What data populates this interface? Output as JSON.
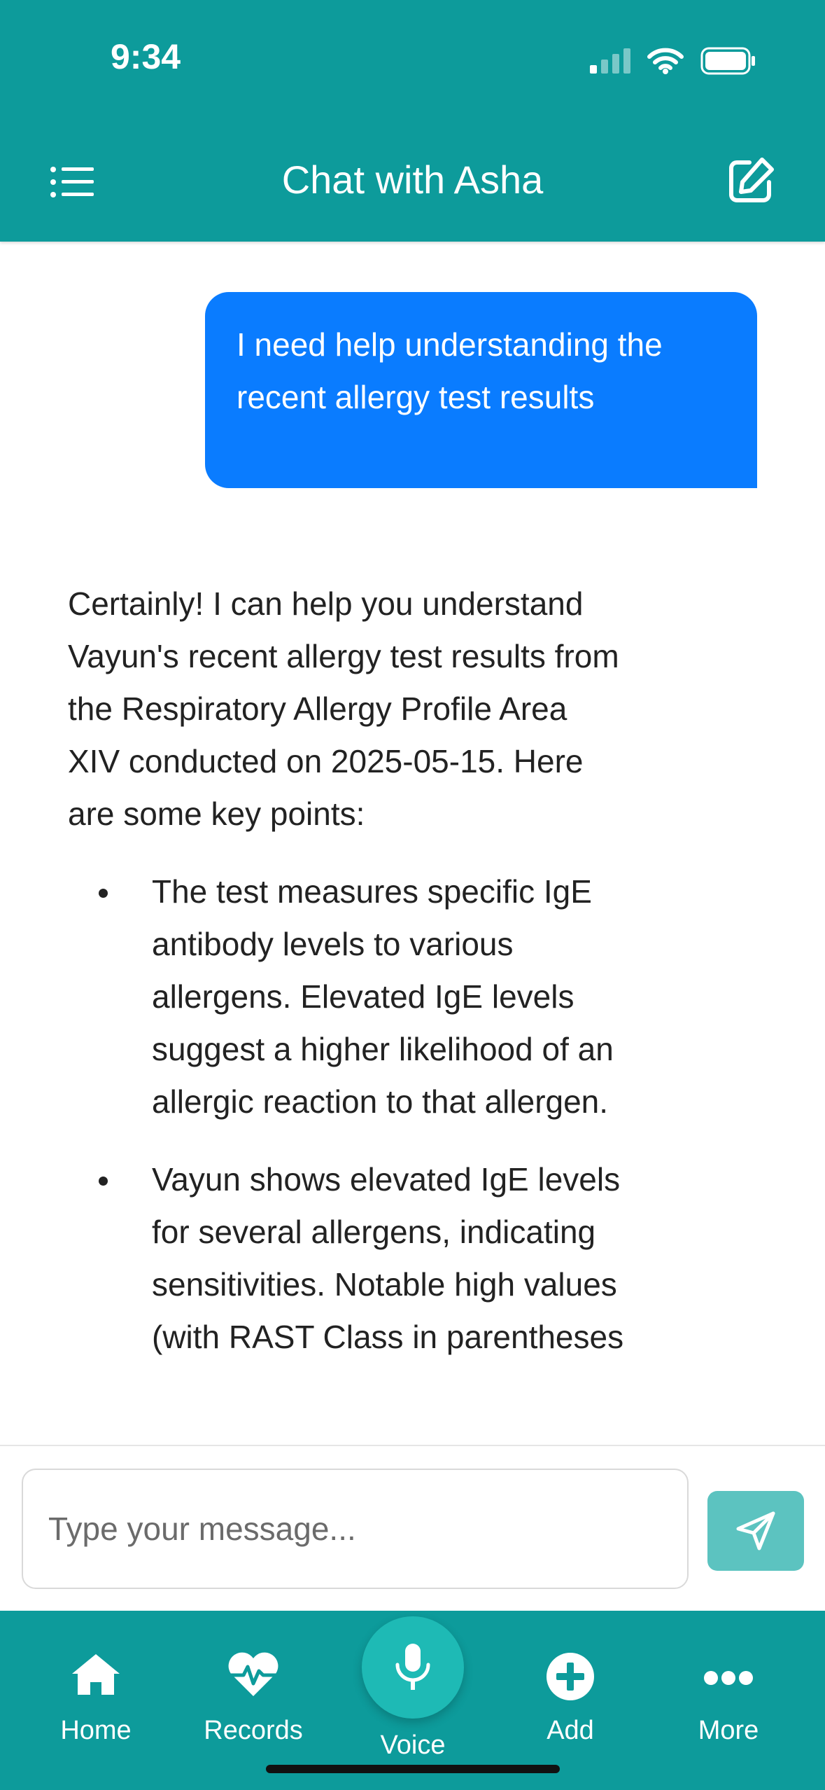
{
  "status_bar": {
    "time": "9:34"
  },
  "header": {
    "title": "Chat with Asha"
  },
  "messages": {
    "user": "I need help understanding the recent allergy test results",
    "assistant_intro": "Certainly! I can help you understand Vayun's recent allergy test results from the Respiratory Allergy Profile Area XIV conducted on 2025-05-15. Here are some key points:",
    "bullets": [
      "The test measures specific IgE antibody levels to various allergens. Elevated IgE levels suggest a higher likelihood of an allergic reaction to that allergen.",
      "Vayun shows elevated IgE levels for several allergens, indicating sensitivities. Notable high values (with RAST Class in parentheses"
    ]
  },
  "input": {
    "placeholder": "Type your message..."
  },
  "tabs": [
    {
      "label": "Home",
      "icon": "home-icon"
    },
    {
      "label": "Records",
      "icon": "heart-pulse-icon"
    },
    {
      "label": "Voice",
      "icon": "microphone-icon"
    },
    {
      "label": "Add",
      "icon": "plus-circle-icon"
    },
    {
      "label": "More",
      "icon": "more-dots-icon"
    }
  ],
  "colors": {
    "header": "#0d9b9b",
    "user_bubble": "#0a7cff",
    "send_button": "#5cc3c0",
    "voice_button": "#1ebab5"
  }
}
